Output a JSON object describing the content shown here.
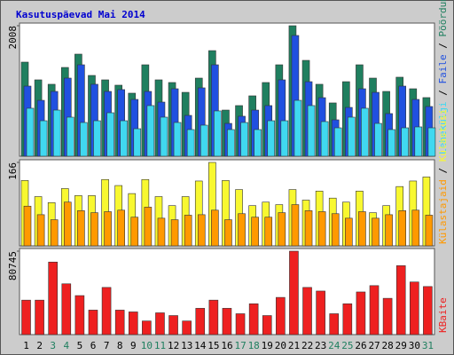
{
  "title": "Kasutuspäevad Mai 2014",
  "legend_separator": " / ",
  "chart_data": [
    {
      "type": "bar",
      "series": [
        {
          "name": "Lehekülgi",
          "color": "#40d8f0",
          "values": [
            738,
            546,
            710,
            601,
            519,
            546,
            669,
            546,
            423,
            779,
            601,
            519,
            410,
            478,
            697,
            410,
            519,
            410,
            546,
            546,
            860,
            779,
            533,
            437,
            601,
            738,
            505,
            410,
            437,
            451,
            437
          ]
        },
        {
          "name": "Faile",
          "color": "#2050e0",
          "values": [
            1079,
            860,
            997,
            1202,
            1407,
            1107,
            997,
            1025,
            874,
            997,
            833,
            1038,
            628,
            1052,
            1407,
            505,
            615,
            710,
            779,
            1175,
            1858,
            1147,
            901,
            560,
            751,
            1038,
            983,
            656,
            1079,
            874,
            765
          ]
        },
        {
          "name": "Pöördumisi",
          "color": "#1f7f5f",
          "values": [
            1448,
            1175,
            1107,
            1366,
            1571,
            1243,
            1175,
            1093,
            970,
            1407,
            1175,
            1134,
            983,
            1202,
            1625,
            710,
            779,
            929,
            1134,
            1407,
            2008,
            1475,
            1107,
            820,
            1147,
            1407,
            1202,
            997,
            1216,
            1038,
            902
          ]
        }
      ],
      "ylim": [
        0,
        2008
      ],
      "yticks": [
        2008
      ]
    },
    {
      "type": "bar",
      "series": [
        {
          "name": "Külastajaid",
          "color": "#ff9900",
          "values": [
            79,
            62,
            52,
            87,
            70,
            66,
            68,
            71,
            57,
            77,
            55,
            52,
            61,
            62,
            71,
            52,
            64,
            57,
            57,
            66,
            82,
            70,
            68,
            64,
            55,
            68,
            55,
            62,
            70,
            71,
            61
          ]
        },
        {
          "name": "Külastusi",
          "color": "#f8f830",
          "values": [
            130,
            98,
            86,
            114,
            100,
            100,
            132,
            120,
            104,
            132,
            98,
            80,
            98,
            129,
            166,
            130,
            112,
            80,
            87,
            82,
            112,
            91,
            109,
            95,
            87,
            109,
            66,
            80,
            118,
            129,
            137
          ]
        }
      ],
      "ylim": [
        0,
        166
      ],
      "yticks": [
        166
      ]
    },
    {
      "type": "bar",
      "categories": [
        "1",
        "2",
        "3",
        "4",
        "5",
        "6",
        "7",
        "8",
        "9",
        "10",
        "11",
        "12",
        "13",
        "14",
        "15",
        "16",
        "17",
        "18",
        "19",
        "20",
        "21",
        "22",
        "23",
        "24",
        "25",
        "26",
        "27",
        "28",
        "29",
        "30",
        "31"
      ],
      "category_colors": [
        "#000000",
        "#000000",
        "#1f7f5f",
        "#1f7f5f",
        "#000000",
        "#000000",
        "#000000",
        "#000000",
        "#000000",
        "#1f7f5f",
        "#1f7f5f",
        "#000000",
        "#000000",
        "#000000",
        "#000000",
        "#000000",
        "#1f7f5f",
        "#1f7f5f",
        "#000000",
        "#000000",
        "#000000",
        "#000000",
        "#000000",
        "#1f7f5f",
        "#1f7f5f",
        "#000000",
        "#000000",
        "#000000",
        "#000000",
        "#000000",
        "#1f7f5f"
      ],
      "series": [
        {
          "name": "KBaite",
          "color": "#ee2020",
          "values": [
            33353,
            33353,
            70213,
            49149,
            37741,
            23698,
            45639,
            23698,
            21942,
            13165,
            21065,
            18432,
            13165,
            25453,
            33353,
            25453,
            20187,
            29842,
            18432,
            35986,
            80745,
            45639,
            42129,
            20187,
            29842,
            41251,
            47394,
            35107,
            66704,
            50906,
            46516
          ]
        }
      ],
      "ylim": [
        0,
        80745
      ],
      "yticks": [
        80745
      ]
    }
  ]
}
